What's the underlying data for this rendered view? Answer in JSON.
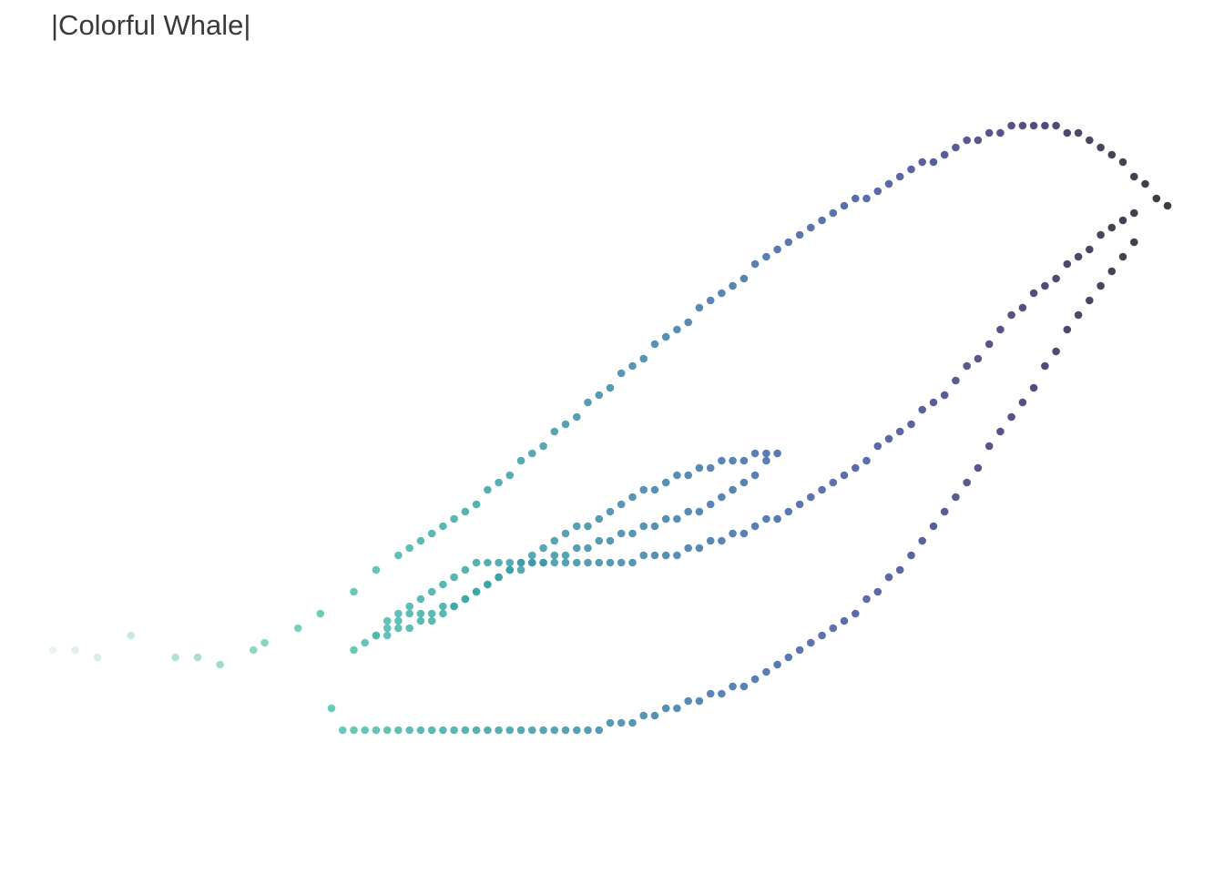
{
  "chart_data": {
    "type": "scatter",
    "title": "|Colorful Whale|",
    "xlabel": "",
    "ylabel": "",
    "xlim": [
      0,
      1
    ],
    "ylim": [
      0,
      1
    ],
    "grid": false,
    "axes_visible": false,
    "legend": "none",
    "color_scale": [
      "#e4f4e8",
      "#9fdcbf",
      "#4fc2ad",
      "#38a6a5",
      "#3a88a6",
      "#3d6aa5",
      "#3e4d94",
      "#392f6a",
      "#1a1a1a"
    ],
    "series": [
      {
        "values": [
          [
            0.0,
            0.26
          ],
          [
            0.02,
            0.26
          ],
          [
            0.04,
            0.25
          ],
          [
            0.07,
            0.28
          ],
          [
            0.11,
            0.25
          ],
          [
            0.13,
            0.25
          ],
          [
            0.15,
            0.24
          ],
          [
            0.18,
            0.26
          ],
          [
            0.19,
            0.27
          ],
          [
            0.22,
            0.29
          ],
          [
            0.24,
            0.31
          ],
          [
            0.27,
            0.34
          ],
          [
            0.29,
            0.37
          ],
          [
            0.31,
            0.39
          ],
          [
            0.32,
            0.4
          ],
          [
            0.33,
            0.41
          ],
          [
            0.34,
            0.42
          ],
          [
            0.35,
            0.43
          ],
          [
            0.36,
            0.44
          ],
          [
            0.37,
            0.45
          ],
          [
            0.38,
            0.46
          ],
          [
            0.39,
            0.48
          ],
          [
            0.4,
            0.49
          ],
          [
            0.41,
            0.5
          ],
          [
            0.42,
            0.52
          ],
          [
            0.43,
            0.53
          ],
          [
            0.44,
            0.54
          ],
          [
            0.45,
            0.56
          ],
          [
            0.46,
            0.57
          ],
          [
            0.47,
            0.58
          ],
          [
            0.48,
            0.6
          ],
          [
            0.49,
            0.61
          ],
          [
            0.5,
            0.62
          ],
          [
            0.51,
            0.64
          ],
          [
            0.52,
            0.65
          ],
          [
            0.53,
            0.66
          ],
          [
            0.54,
            0.68
          ],
          [
            0.55,
            0.69
          ],
          [
            0.56,
            0.7
          ],
          [
            0.57,
            0.71
          ],
          [
            0.58,
            0.73
          ],
          [
            0.59,
            0.74
          ],
          [
            0.6,
            0.75
          ],
          [
            0.61,
            0.76
          ],
          [
            0.62,
            0.77
          ],
          [
            0.63,
            0.79
          ],
          [
            0.64,
            0.8
          ],
          [
            0.65,
            0.81
          ],
          [
            0.66,
            0.82
          ],
          [
            0.67,
            0.83
          ],
          [
            0.68,
            0.84
          ],
          [
            0.69,
            0.85
          ],
          [
            0.7,
            0.86
          ],
          [
            0.71,
            0.87
          ],
          [
            0.72,
            0.88
          ],
          [
            0.73,
            0.88
          ],
          [
            0.74,
            0.89
          ],
          [
            0.75,
            0.9
          ],
          [
            0.76,
            0.91
          ],
          [
            0.77,
            0.92
          ],
          [
            0.78,
            0.93
          ],
          [
            0.79,
            0.93
          ],
          [
            0.8,
            0.94
          ],
          [
            0.81,
            0.95
          ],
          [
            0.82,
            0.96
          ],
          [
            0.83,
            0.96
          ],
          [
            0.84,
            0.97
          ],
          [
            0.85,
            0.97
          ],
          [
            0.86,
            0.98
          ],
          [
            0.87,
            0.98
          ],
          [
            0.88,
            0.98
          ],
          [
            0.89,
            0.98
          ],
          [
            0.9,
            0.98
          ],
          [
            0.91,
            0.97
          ],
          [
            0.92,
            0.97
          ],
          [
            0.93,
            0.96
          ],
          [
            0.94,
            0.95
          ],
          [
            0.95,
            0.94
          ],
          [
            0.96,
            0.93
          ],
          [
            0.97,
            0.91
          ],
          [
            0.98,
            0.9
          ],
          [
            0.99,
            0.88
          ],
          [
            1.0,
            0.87
          ]
        ]
      },
      {
        "values": [
          [
            0.97,
            0.86
          ],
          [
            0.96,
            0.85
          ],
          [
            0.95,
            0.84
          ],
          [
            0.94,
            0.83
          ],
          [
            0.93,
            0.81
          ],
          [
            0.92,
            0.8
          ],
          [
            0.91,
            0.79
          ],
          [
            0.9,
            0.77
          ],
          [
            0.89,
            0.76
          ],
          [
            0.88,
            0.75
          ],
          [
            0.87,
            0.73
          ],
          [
            0.86,
            0.72
          ],
          [
            0.85,
            0.7
          ],
          [
            0.84,
            0.68
          ],
          [
            0.83,
            0.66
          ],
          [
            0.82,
            0.65
          ],
          [
            0.81,
            0.63
          ],
          [
            0.8,
            0.61
          ],
          [
            0.79,
            0.6
          ],
          [
            0.78,
            0.59
          ],
          [
            0.77,
            0.57
          ],
          [
            0.76,
            0.56
          ],
          [
            0.75,
            0.55
          ],
          [
            0.74,
            0.54
          ],
          [
            0.73,
            0.52
          ],
          [
            0.72,
            0.51
          ],
          [
            0.71,
            0.5
          ],
          [
            0.7,
            0.49
          ],
          [
            0.69,
            0.48
          ],
          [
            0.68,
            0.47
          ],
          [
            0.67,
            0.46
          ],
          [
            0.66,
            0.45
          ],
          [
            0.65,
            0.44
          ],
          [
            0.64,
            0.44
          ],
          [
            0.63,
            0.43
          ],
          [
            0.62,
            0.42
          ],
          [
            0.61,
            0.42
          ],
          [
            0.6,
            0.41
          ],
          [
            0.59,
            0.41
          ],
          [
            0.58,
            0.4
          ],
          [
            0.57,
            0.4
          ],
          [
            0.56,
            0.39
          ],
          [
            0.55,
            0.39
          ],
          [
            0.54,
            0.39
          ],
          [
            0.53,
            0.39
          ],
          [
            0.52,
            0.38
          ],
          [
            0.51,
            0.38
          ],
          [
            0.5,
            0.38
          ],
          [
            0.49,
            0.38
          ],
          [
            0.48,
            0.38
          ],
          [
            0.47,
            0.38
          ],
          [
            0.46,
            0.38
          ],
          [
            0.45,
            0.38
          ],
          [
            0.44,
            0.38
          ],
          [
            0.43,
            0.38
          ],
          [
            0.42,
            0.38
          ],
          [
            0.41,
            0.38
          ],
          [
            0.4,
            0.38
          ],
          [
            0.39,
            0.38
          ],
          [
            0.38,
            0.38
          ],
          [
            0.37,
            0.37
          ],
          [
            0.36,
            0.36
          ],
          [
            0.35,
            0.35
          ],
          [
            0.34,
            0.34
          ],
          [
            0.33,
            0.33
          ],
          [
            0.32,
            0.32
          ],
          [
            0.31,
            0.31
          ],
          [
            0.3,
            0.3
          ],
          [
            0.29,
            0.28
          ]
        ]
      },
      {
        "values": [
          [
            0.97,
            0.82
          ],
          [
            0.96,
            0.8
          ],
          [
            0.95,
            0.78
          ],
          [
            0.94,
            0.76
          ],
          [
            0.93,
            0.74
          ],
          [
            0.92,
            0.72
          ],
          [
            0.91,
            0.7
          ],
          [
            0.9,
            0.67
          ],
          [
            0.89,
            0.65
          ],
          [
            0.88,
            0.62
          ],
          [
            0.87,
            0.6
          ],
          [
            0.86,
            0.58
          ],
          [
            0.85,
            0.56
          ],
          [
            0.84,
            0.54
          ],
          [
            0.83,
            0.51
          ],
          [
            0.82,
            0.49
          ],
          [
            0.81,
            0.47
          ],
          [
            0.8,
            0.45
          ],
          [
            0.79,
            0.43
          ],
          [
            0.78,
            0.41
          ],
          [
            0.77,
            0.39
          ],
          [
            0.76,
            0.37
          ],
          [
            0.75,
            0.36
          ],
          [
            0.74,
            0.34
          ],
          [
            0.73,
            0.33
          ],
          [
            0.72,
            0.31
          ],
          [
            0.71,
            0.3
          ],
          [
            0.7,
            0.29
          ],
          [
            0.69,
            0.28
          ],
          [
            0.68,
            0.27
          ],
          [
            0.67,
            0.26
          ],
          [
            0.66,
            0.25
          ],
          [
            0.65,
            0.24
          ],
          [
            0.64,
            0.23
          ],
          [
            0.63,
            0.22
          ],
          [
            0.62,
            0.21
          ],
          [
            0.61,
            0.21
          ],
          [
            0.6,
            0.2
          ],
          [
            0.59,
            0.2
          ],
          [
            0.58,
            0.19
          ],
          [
            0.57,
            0.19
          ],
          [
            0.56,
            0.18
          ],
          [
            0.55,
            0.18
          ],
          [
            0.54,
            0.17
          ],
          [
            0.53,
            0.17
          ],
          [
            0.52,
            0.16
          ],
          [
            0.51,
            0.16
          ],
          [
            0.5,
            0.16
          ],
          [
            0.49,
            0.15
          ],
          [
            0.48,
            0.15
          ],
          [
            0.47,
            0.15
          ],
          [
            0.46,
            0.15
          ],
          [
            0.45,
            0.15
          ],
          [
            0.44,
            0.15
          ],
          [
            0.43,
            0.15
          ],
          [
            0.42,
            0.15
          ],
          [
            0.41,
            0.15
          ],
          [
            0.4,
            0.15
          ],
          [
            0.39,
            0.15
          ],
          [
            0.38,
            0.15
          ],
          [
            0.37,
            0.15
          ],
          [
            0.36,
            0.15
          ],
          [
            0.35,
            0.15
          ],
          [
            0.34,
            0.15
          ],
          [
            0.33,
            0.15
          ],
          [
            0.32,
            0.15
          ],
          [
            0.31,
            0.15
          ],
          [
            0.3,
            0.15
          ],
          [
            0.29,
            0.15
          ],
          [
            0.28,
            0.15
          ],
          [
            0.27,
            0.15
          ],
          [
            0.26,
            0.15
          ],
          [
            0.25,
            0.18
          ]
        ]
      },
      {
        "values": [
          [
            0.65,
            0.53
          ],
          [
            0.64,
            0.53
          ],
          [
            0.63,
            0.53
          ],
          [
            0.62,
            0.52
          ],
          [
            0.61,
            0.52
          ],
          [
            0.6,
            0.52
          ],
          [
            0.59,
            0.51
          ],
          [
            0.58,
            0.51
          ],
          [
            0.57,
            0.5
          ],
          [
            0.56,
            0.5
          ],
          [
            0.55,
            0.49
          ],
          [
            0.54,
            0.48
          ],
          [
            0.53,
            0.48
          ],
          [
            0.52,
            0.47
          ],
          [
            0.51,
            0.46
          ],
          [
            0.5,
            0.45
          ],
          [
            0.49,
            0.44
          ],
          [
            0.48,
            0.43
          ],
          [
            0.47,
            0.43
          ],
          [
            0.46,
            0.42
          ],
          [
            0.45,
            0.41
          ],
          [
            0.44,
            0.4
          ],
          [
            0.43,
            0.39
          ],
          [
            0.42,
            0.38
          ],
          [
            0.41,
            0.37
          ],
          [
            0.4,
            0.36
          ],
          [
            0.39,
            0.35
          ],
          [
            0.38,
            0.34
          ],
          [
            0.37,
            0.33
          ],
          [
            0.36,
            0.32
          ],
          [
            0.35,
            0.32
          ],
          [
            0.34,
            0.31
          ],
          [
            0.33,
            0.31
          ],
          [
            0.32,
            0.31
          ],
          [
            0.31,
            0.3
          ],
          [
            0.3,
            0.29
          ],
          [
            0.29,
            0.28
          ],
          [
            0.28,
            0.27
          ],
          [
            0.27,
            0.26
          ]
        ]
      },
      {
        "values": [
          [
            0.64,
            0.52
          ],
          [
            0.63,
            0.5
          ],
          [
            0.62,
            0.49
          ],
          [
            0.61,
            0.48
          ],
          [
            0.6,
            0.47
          ],
          [
            0.59,
            0.46
          ],
          [
            0.58,
            0.45
          ],
          [
            0.57,
            0.45
          ],
          [
            0.56,
            0.44
          ],
          [
            0.55,
            0.44
          ],
          [
            0.54,
            0.43
          ],
          [
            0.53,
            0.43
          ],
          [
            0.52,
            0.42
          ],
          [
            0.51,
            0.42
          ],
          [
            0.5,
            0.41
          ],
          [
            0.49,
            0.41
          ],
          [
            0.48,
            0.4
          ],
          [
            0.47,
            0.4
          ],
          [
            0.46,
            0.39
          ],
          [
            0.45,
            0.39
          ],
          [
            0.44,
            0.38
          ],
          [
            0.43,
            0.38
          ],
          [
            0.42,
            0.37
          ],
          [
            0.41,
            0.37
          ],
          [
            0.4,
            0.36
          ],
          [
            0.39,
            0.35
          ],
          [
            0.38,
            0.34
          ],
          [
            0.37,
            0.33
          ],
          [
            0.36,
            0.32
          ],
          [
            0.35,
            0.31
          ],
          [
            0.34,
            0.3
          ],
          [
            0.33,
            0.3
          ],
          [
            0.32,
            0.29
          ],
          [
            0.31,
            0.29
          ],
          [
            0.3,
            0.28
          ]
        ]
      }
    ]
  }
}
